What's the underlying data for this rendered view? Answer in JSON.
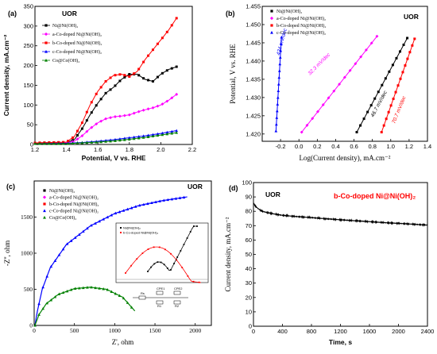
{
  "chart_data": [
    {
      "panel": "(a)",
      "type": "line",
      "annotation": "UOR",
      "xlabel": "Potential, V vs. RHE",
      "ylabel": "Current density, mA.cm⁻²",
      "xlim": [
        1.2,
        2.2
      ],
      "ylim": [
        0,
        350
      ],
      "xticks": [
        "1.2",
        "1.4",
        "1.6",
        "1.8",
        "2.0",
        "2.2"
      ],
      "yticks": [
        "0",
        "50",
        "100",
        "150",
        "200",
        "250",
        "300",
        "350"
      ],
      "legend": "top-left",
      "series": [
        {
          "name": "Ni@Ni(OH)₂",
          "color": "#000000",
          "marker": "square",
          "x": [
            1.2,
            1.4,
            1.45,
            1.5,
            1.55,
            1.6,
            1.65,
            1.7,
            1.75,
            1.8,
            1.85,
            1.9,
            1.95,
            2.0,
            2.05,
            2.1
          ],
          "y": [
            4,
            5,
            12,
            40,
            75,
            105,
            130,
            145,
            165,
            178,
            178,
            165,
            160,
            178,
            190,
            197
          ]
        },
        {
          "name": "a-Co-doped Ni@Ni(OH)₂",
          "color": "#ff00ff",
          "marker": "diamond",
          "x": [
            1.2,
            1.4,
            1.45,
            1.5,
            1.55,
            1.6,
            1.65,
            1.7,
            1.75,
            1.8,
            1.85,
            1.9,
            1.95,
            2.0,
            2.05,
            2.1
          ],
          "y": [
            3,
            4,
            8,
            22,
            40,
            55,
            65,
            70,
            72,
            75,
            82,
            88,
            93,
            100,
            112,
            127
          ]
        },
        {
          "name": "b-Co-doped Ni@Ni(OH)₂",
          "color": "#ff0000",
          "marker": "square",
          "x": [
            1.2,
            1.4,
            1.45,
            1.5,
            1.55,
            1.6,
            1.65,
            1.7,
            1.75,
            1.8,
            1.85,
            1.9,
            1.95,
            2.0,
            2.05,
            2.1
          ],
          "y": [
            4,
            6,
            20,
            55,
            100,
            135,
            160,
            175,
            178,
            172,
            185,
            215,
            240,
            265,
            290,
            320
          ]
        },
        {
          "name": "c-Co-doped Ni@Ni(OH)₂",
          "color": "#0000ff",
          "marker": "triangle",
          "x": [
            1.2,
            1.4,
            1.5,
            1.6,
            1.7,
            1.8,
            1.9,
            2.0,
            2.1
          ],
          "y": [
            2,
            3,
            5,
            8,
            12,
            17,
            22,
            28,
            35
          ]
        },
        {
          "name": "Co@Co(OH)₂",
          "color": "#008000",
          "marker": "triangle",
          "x": [
            1.2,
            1.4,
            1.5,
            1.6,
            1.7,
            1.8,
            1.9,
            2.0,
            2.1
          ],
          "y": [
            2,
            2,
            4,
            6,
            9,
            13,
            18,
            24,
            30
          ]
        }
      ]
    },
    {
      "panel": "(b)",
      "type": "scatter",
      "annotation": "UOR",
      "xlabel": "Log(Current density), mA.cm⁻²",
      "ylabel": "Potential, V vs. RHE",
      "xlim": [
        -0.4,
        1.4
      ],
      "ylim": [
        1.418,
        1.455
      ],
      "xticks": [
        "-0.2",
        "0.0",
        "0.2",
        "0.4",
        "0.6",
        "0.8",
        "1.0",
        "1.2",
        "1.4"
      ],
      "yticks": [
        "1.420",
        "1.425",
        "1.430",
        "1.435",
        "1.440",
        "1.445",
        "1.450",
        "1.455"
      ],
      "legend": "top-left",
      "series": [
        {
          "name": "Ni@Ni(OH)₂",
          "color": "#000000",
          "marker": "square",
          "slope_label": "46.7 mV/dec",
          "x": [
            0.63,
            1.18
          ],
          "y": [
            1.4205,
            1.4463
          ]
        },
        {
          "name": "a-Co-doped Ni@Ni(OH)₂",
          "color": "#ff00ff",
          "marker": "diamond",
          "slope_label": "32.3 mV/dec",
          "x": [
            0.03,
            0.85
          ],
          "y": [
            1.4205,
            1.4468
          ]
        },
        {
          "name": "b-Co-doped Ni@Ni(OH)₂",
          "color": "#ff0000",
          "marker": "square",
          "slope_label": "70.7 mV/dec",
          "x": [
            0.9,
            1.26
          ],
          "y": [
            1.4205,
            1.4461
          ]
        },
        {
          "name": "c-Co-doped Ni@Ni(OH)₂",
          "color": "#0000ff",
          "marker": "triangle",
          "slope_label": "434 mV/dec",
          "x": [
            -0.25,
            -0.19
          ],
          "y": [
            1.4208,
            1.4465
          ]
        }
      ]
    },
    {
      "panel": "(c)",
      "type": "scatter",
      "annotation": "UOR",
      "xlabel": "Z', ohm",
      "ylabel": "-Z'', ohm",
      "xlim": [
        0,
        2200
      ],
      "ylim": [
        0,
        2000
      ],
      "xticks": [
        "0",
        "500",
        "1000",
        "1500",
        "2000"
      ],
      "yticks": [
        "0",
        "500",
        "1000",
        "1500"
      ],
      "legend": "top-left",
      "series": [
        {
          "name": "Ni@Ni(OH)₂",
          "color": "#000000",
          "marker": "square"
        },
        {
          "name": "a-Co-doped Ni@Ni(OH)₂",
          "color": "#ff00ff",
          "marker": "diamond"
        },
        {
          "name": "b-Co-doped Ni@Ni(OH)₂",
          "color": "#ff0000",
          "marker": "square"
        },
        {
          "name": "c-Co-doped Ni@Ni(OH)₂",
          "color": "#0000ff",
          "marker": "triangle",
          "x": [
            10,
            40,
            100,
            200,
            400,
            700,
            1000,
            1300,
            1600,
            1900
          ],
          "y": [
            0,
            200,
            500,
            800,
            1120,
            1380,
            1550,
            1660,
            1730,
            1780
          ]
        },
        {
          "name": "Co@Co(OH)₂",
          "color": "#008000",
          "marker": "triangle",
          "x": [
            10,
            60,
            150,
            300,
            500,
            700,
            900,
            1100,
            1250
          ],
          "y": [
            0,
            150,
            300,
            430,
            510,
            530,
            500,
            390,
            200
          ]
        }
      ],
      "inset": {
        "legend": [
          "Ni@Ni(OH)₂",
          "b-Co-doped Ni@Ni(OH)₂"
        ],
        "circuit_labels": [
          "Rs",
          "CPE1",
          "R1",
          "CPE2",
          "R2"
        ]
      }
    },
    {
      "panel": "(d)",
      "type": "line",
      "annotation": "UOR",
      "series_label": "b-Co-doped Ni@Ni(OH)₂",
      "xlabel": "Time, s",
      "ylabel": "Current density, mA.cm⁻²",
      "xlim": [
        0,
        2400
      ],
      "ylim": [
        0,
        100
      ],
      "xticks": [
        "0",
        "400",
        "800",
        "1200",
        "1600",
        "2000",
        "2400"
      ],
      "yticks": [
        "0",
        "10",
        "20",
        "30",
        "40",
        "50",
        "60",
        "70",
        "80",
        "90",
        "100"
      ],
      "series": [
        {
          "name": "b-Co-doped Ni@Ni(OH)₂",
          "color": "#000000",
          "x": [
            0,
            20,
            60,
            120,
            200,
            300,
            400,
            600,
            800,
            1000,
            1200,
            1400,
            1600,
            1800,
            2000,
            2200,
            2400
          ],
          "y": [
            86,
            84,
            82,
            80,
            79,
            78,
            77.2,
            76.3,
            75.6,
            74.8,
            74.1,
            73.4,
            72.8,
            72.1,
            71.6,
            71.0,
            70.4
          ]
        }
      ]
    }
  ]
}
